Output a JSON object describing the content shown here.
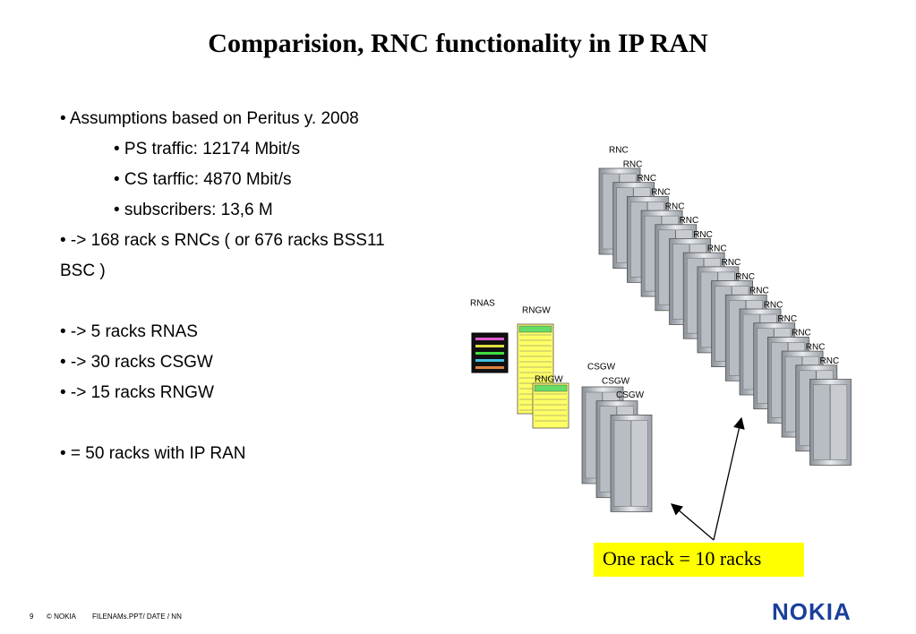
{
  "title": "Comparision, RNC functionality in IP RAN",
  "sections": [
    {
      "items": [
        {
          "text": "• Assumptions based on Peritus y.  2008",
          "children": [
            "• PS  traffic: 12174 Mbit/s",
            "• CS tarffic: 4870 Mbit/s",
            "• subscribers: 13,6 M"
          ]
        },
        {
          "text": "• -> 168 rack s RNCs ( or 676 racks BSS11 BSC )"
        }
      ]
    },
    {
      "items": [
        {
          "text": "• -> 5 racks RNAS"
        },
        {
          "text": "• -> 30 racks CSGW"
        },
        {
          "text": "• -> 15 racks RNGW"
        }
      ]
    },
    {
      "items": [
        {
          "text": "• = 50 racks with IP RAN"
        }
      ]
    }
  ],
  "diagram": {
    "rnc_labels": [
      "RNC",
      "RNC",
      "RNC",
      "RNC",
      "RNC",
      "RNC",
      "RNC",
      "RNC",
      "RNC",
      "RNC",
      "RNC",
      "RNC",
      "RNC",
      "RNC",
      "RNC",
      "RNC"
    ],
    "csgw_labels": [
      "CSGW",
      "CSGW",
      "CSGW"
    ],
    "rnas_label": "RNAS",
    "rngw_labels": [
      "RNGW",
      "RNGW"
    ],
    "callout": "One rack = 10 racks"
  },
  "footer": {
    "page": "9",
    "copyright": "© NOKIA",
    "file": "FILENAMs.PPT/ DATE / NN",
    "logo": "NOKIA"
  }
}
